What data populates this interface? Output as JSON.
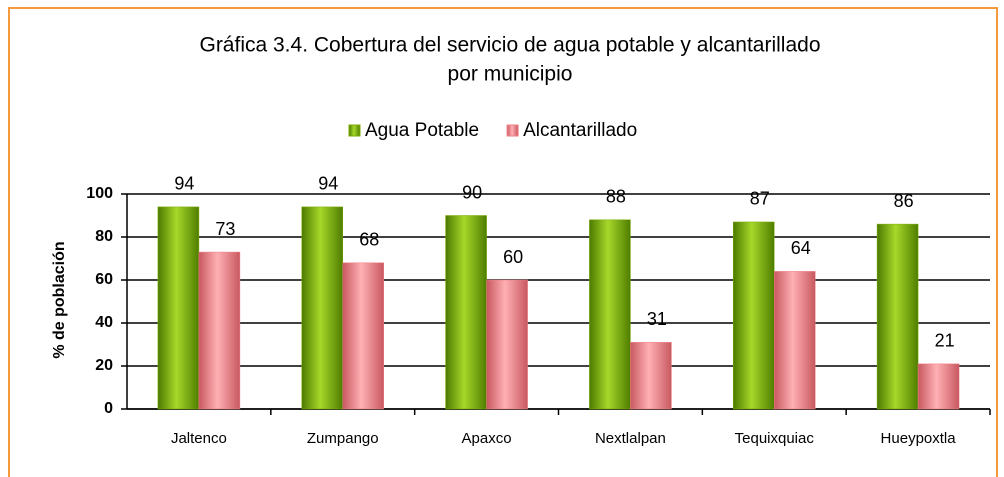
{
  "chart_data": {
    "type": "bar",
    "title": [
      "Gráfica 3.4. Cobertura del servicio de agua potable y alcantarillado",
      "por municipio"
    ],
    "y_label": "% de población",
    "categories": [
      "Jaltenco",
      "Zumpango",
      "Apaxco",
      "Nextlalpan",
      "Tequixquiac",
      "Hueypoxtla"
    ],
    "series": [
      {
        "name": "Agua Potable",
        "color": "#7aab00",
        "values": [
          94,
          94,
          90,
          88,
          87,
          86
        ]
      },
      {
        "name": "Alcantarillado",
        "color": "#f07f84",
        "values": [
          73,
          68,
          60,
          31,
          64,
          21
        ]
      }
    ],
    "ylim": [
      0,
      100
    ],
    "yticks": [
      0,
      20,
      40,
      60,
      80,
      100
    ],
    "grid": true,
    "legend": "top"
  }
}
